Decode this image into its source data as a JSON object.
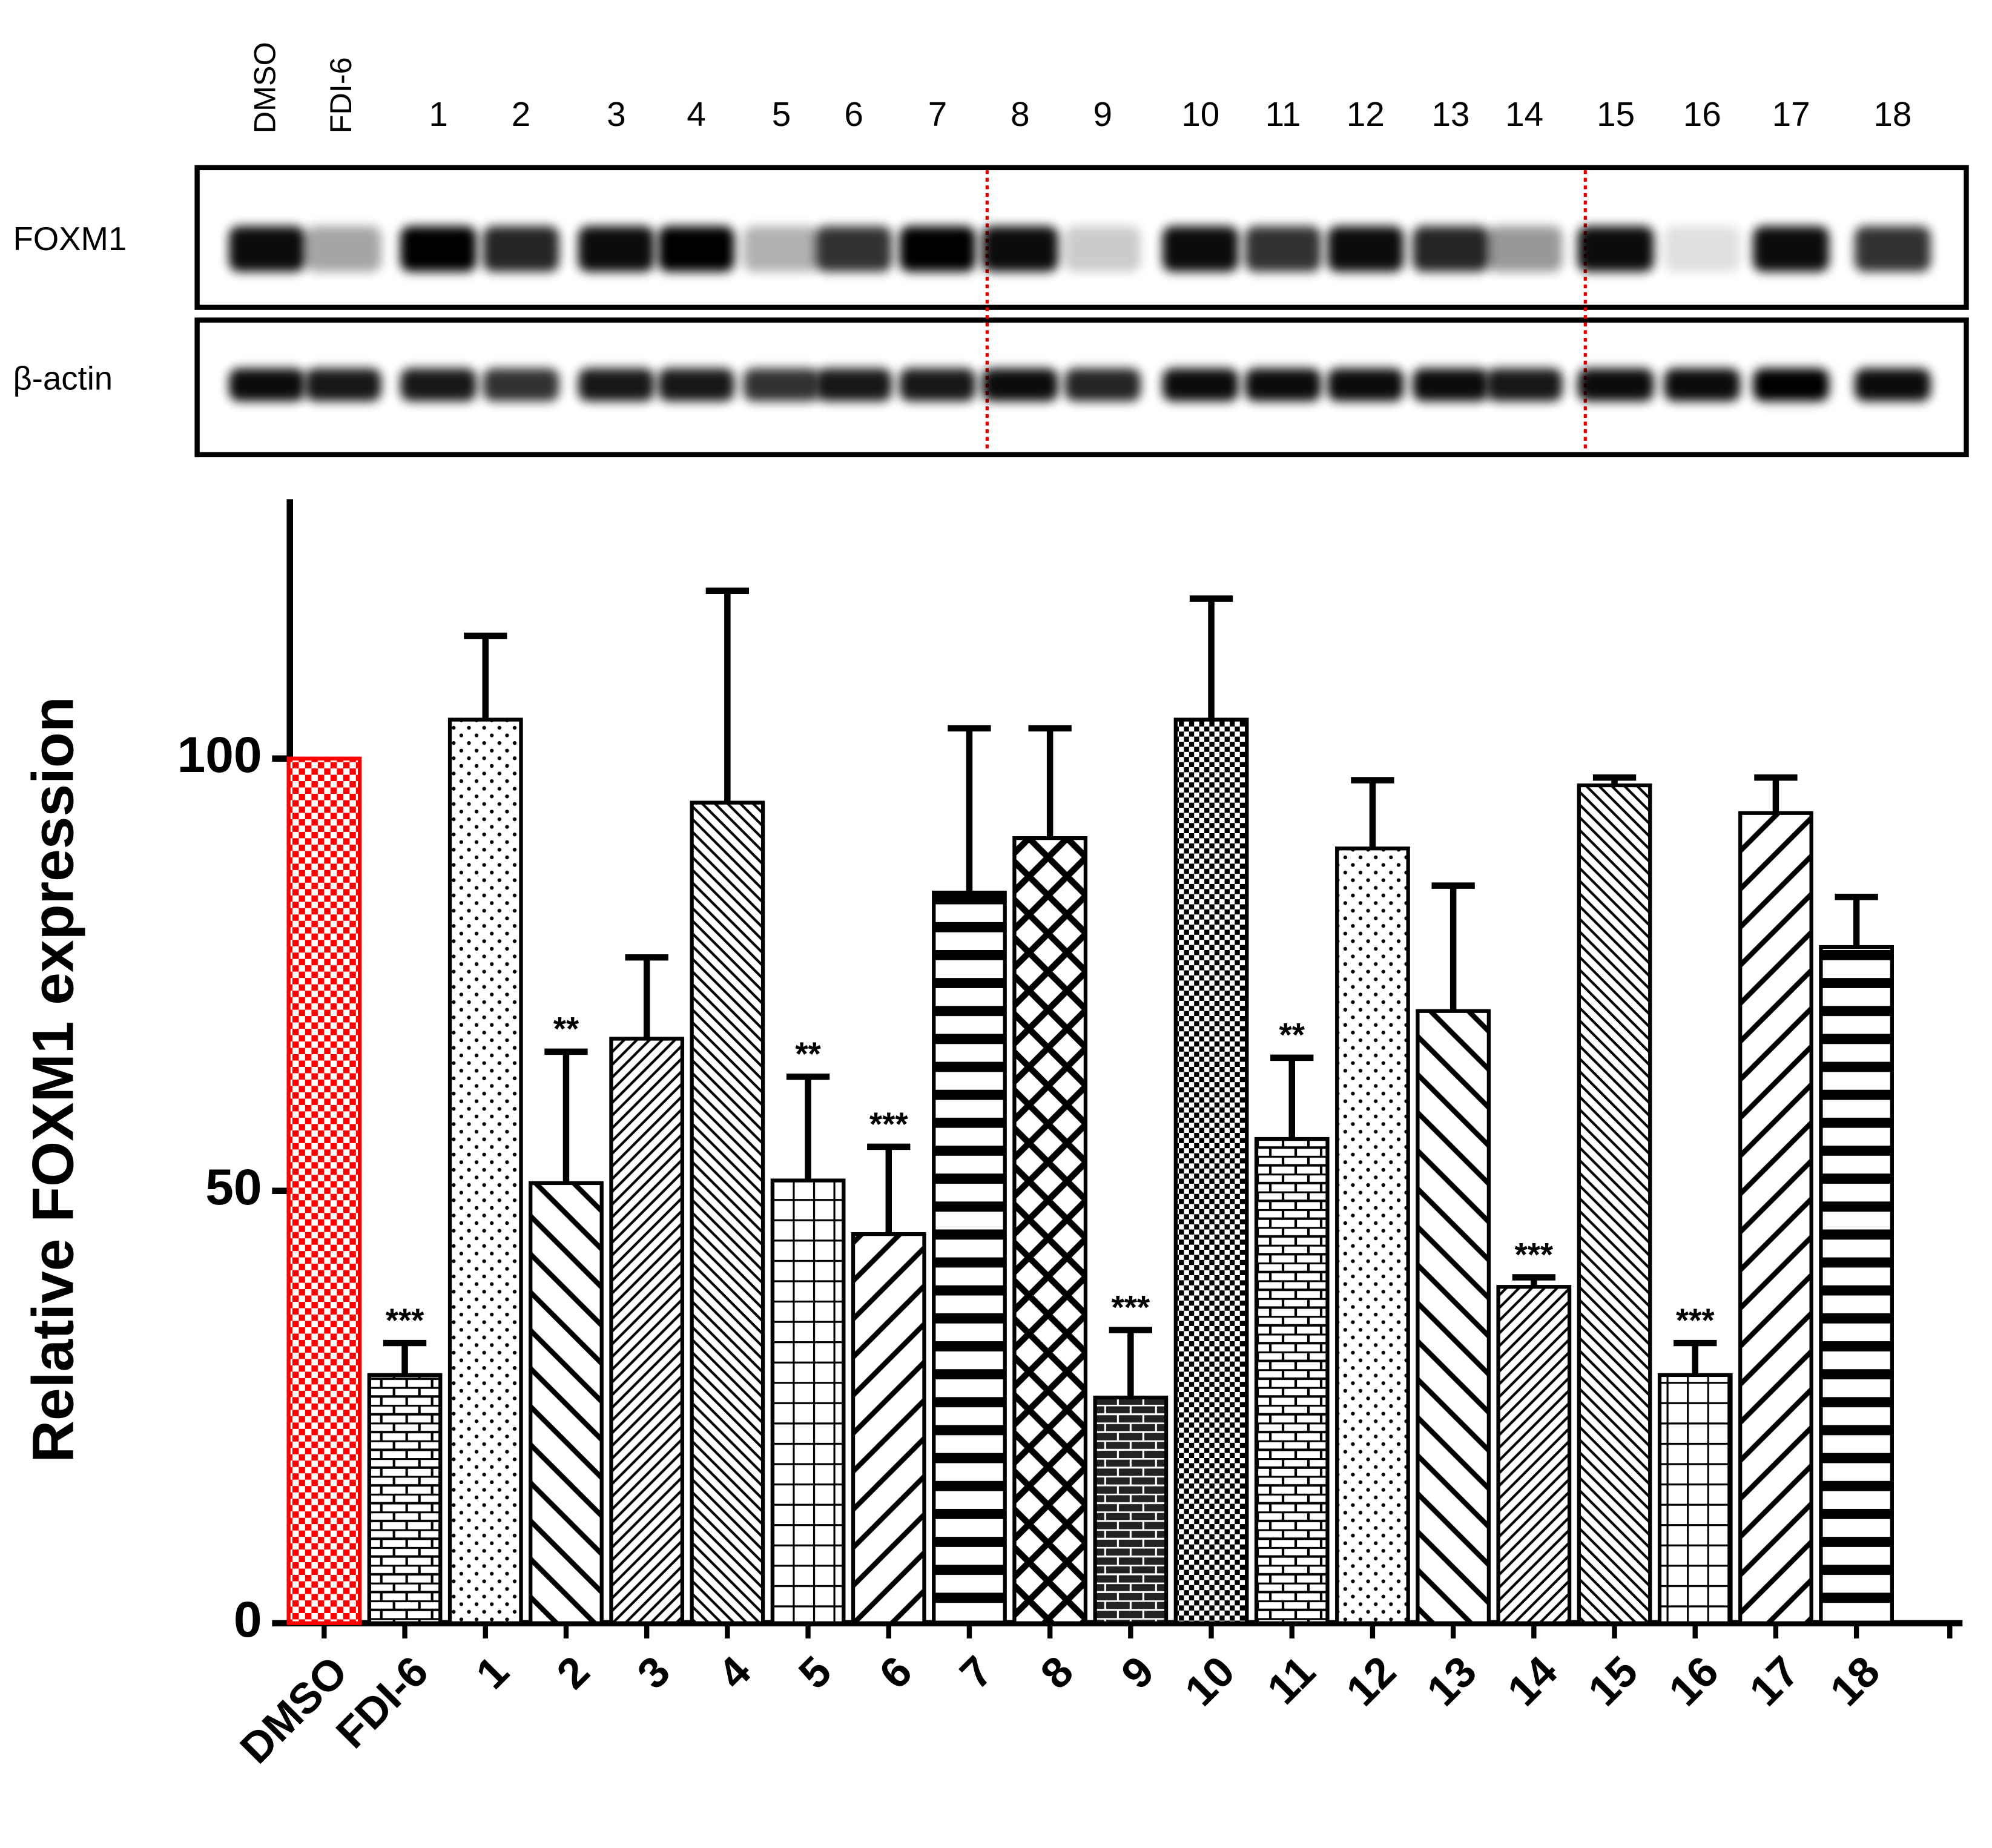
{
  "chart_data": {
    "type": "bar",
    "blot_rows": [
      "FOXM1",
      "β-actin"
    ],
    "ylabel": "Relative FOXM1 expression",
    "categories": [
      "DMSO",
      "FDI-6",
      "1",
      "2",
      "3",
      "4",
      "5",
      "6",
      "7",
      "8",
      "9",
      "10",
      "11",
      "12",
      "13",
      "14",
      "15",
      "16",
      "17",
      "18"
    ],
    "values": [
      100,
      28.7,
      104.5,
      50.9,
      67.6,
      94.9,
      51.2,
      45,
      84.5,
      90.8,
      26.1,
      104.5,
      56,
      89.6,
      70.8,
      38.9,
      96.9,
      28.7,
      93.7,
      78.2
    ],
    "errors": [
      null,
      3.7,
      9.7,
      15.2,
      9.4,
      24.5,
      12,
      10.1,
      19,
      12.7,
      7.8,
      14,
      9.4,
      7.9,
      14.5,
      1.1,
      0.9,
      3.7,
      4.1,
      5.8
    ],
    "significance": [
      null,
      "***",
      null,
      "**",
      null,
      null,
      "**",
      "***",
      null,
      null,
      "***",
      null,
      "**",
      null,
      null,
      "***",
      null,
      "***",
      null,
      null
    ],
    "ylim": [
      0,
      130
    ],
    "yticks": [
      0,
      50,
      100
    ],
    "grid": false
  }
}
